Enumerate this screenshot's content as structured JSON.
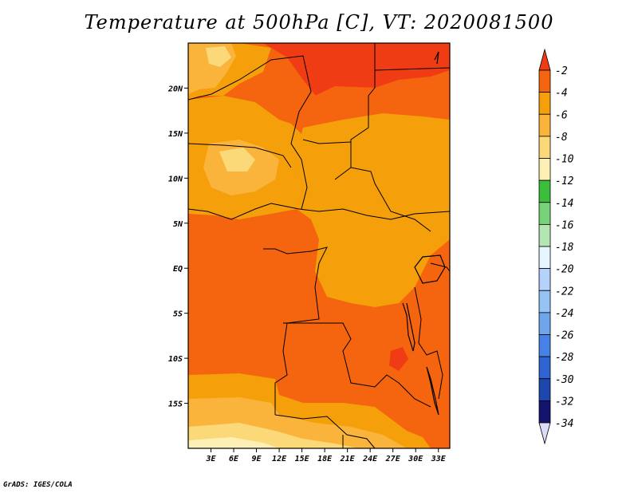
{
  "title": "Temperature at 500hPa [C], VT: 2020081500",
  "credit": "GrADS: IGES/COLA",
  "map": {
    "lon_range": [
      0,
      34.5
    ],
    "lat_range": [
      -20,
      25
    ],
    "x_ticks": [
      "3E",
      "6E",
      "9E",
      "12E",
      "15E",
      "18E",
      "21E",
      "24E",
      "27E",
      "30E",
      "33E"
    ],
    "y_ticks": [
      "20N",
      "15N",
      "10N",
      "5N",
      "EQ",
      "5S",
      "10S",
      "15S"
    ],
    "region_colors": {
      "c-2": "#f03c14",
      "c-4": "#f5640f",
      "c-6": "#f5a00a",
      "c-8": "#fab43c",
      "c-10": "#fbd878",
      "c-12": "#fef0b4"
    }
  },
  "colorbar": {
    "labels": [
      "-2",
      "-4",
      "-6",
      "-8",
      "-10",
      "-12",
      "-14",
      "-16",
      "-18",
      "-20",
      "-22",
      "-24",
      "-26",
      "-28",
      "-30",
      "-32",
      "-34"
    ],
    "colors": [
      "#f03c14",
      "#f5640f",
      "#f5a00a",
      "#fab43c",
      "#fbd878",
      "#fef0b4",
      "#3cbe3c",
      "#78d278",
      "#b4e6b4",
      "#e6f5ff",
      "#b4d2fa",
      "#96c3f5",
      "#6ea5eb",
      "#4682e6",
      "#2d64d2",
      "#1e46af",
      "#14146e",
      "#dcdcfa"
    ]
  }
}
